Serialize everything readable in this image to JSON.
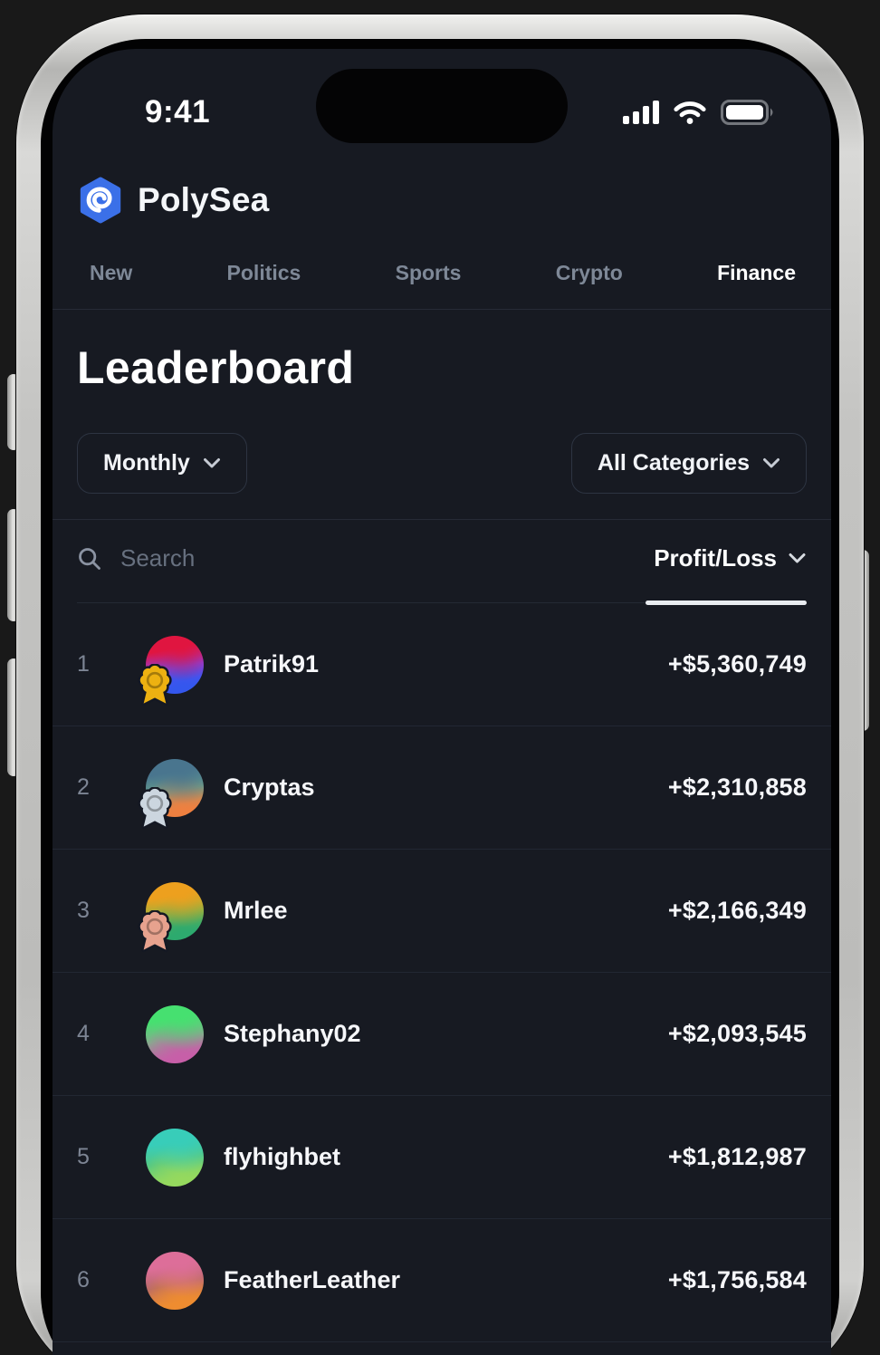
{
  "status_bar": {
    "time": "9:41",
    "icons": [
      "cellular-signal-icon",
      "wifi-icon",
      "battery-icon"
    ]
  },
  "brand": {
    "name": "PolySea",
    "logo_icon": "polysea-swirl-hexagon",
    "logo_color": "#3b70e8"
  },
  "nav": {
    "items": [
      {
        "label": "New",
        "active": false
      },
      {
        "label": "Politics",
        "active": false
      },
      {
        "label": "Sports",
        "active": false
      },
      {
        "label": "Crypto",
        "active": false
      },
      {
        "label": "Finance",
        "active": true
      }
    ]
  },
  "page": {
    "title": "Leaderboard"
  },
  "filters": {
    "period": "Monthly",
    "category": "All Categories"
  },
  "search": {
    "placeholder": "Search"
  },
  "sort": {
    "label": "Profit/Loss",
    "active": true
  },
  "colors": {
    "screen_bg": "#171a22",
    "divider": "#242a35",
    "muted_text": "#7e8897",
    "badge_gold": "#edb111",
    "badge_silver": "#ccd6df",
    "badge_bronze": "#e7a28e"
  },
  "leaderboard": {
    "rows": [
      {
        "rank": "1",
        "name": "Patrik91",
        "value": "+$5,360,749",
        "badge": "gold",
        "badge_color": "#edb111",
        "avatar_colors": [
          "#e01540",
          "#8b3fe8",
          "#3457ee"
        ]
      },
      {
        "rank": "2",
        "name": "Cryptas",
        "value": "+$2,310,858",
        "badge": "silver",
        "badge_color": "#ccd6df",
        "avatar_colors": [
          "#49758e",
          "#68a18c",
          "#ee8040"
        ]
      },
      {
        "rank": "3",
        "name": "Mrlee",
        "value": "+$2,166,349",
        "badge": "bronze",
        "badge_color": "#e7a28e",
        "avatar_colors": [
          "#eda01e",
          "#8fb441",
          "#2daa6e"
        ]
      },
      {
        "rank": "4",
        "name": "Stephany02",
        "value": "+$2,093,545",
        "badge": null,
        "badge_color": null,
        "avatar_colors": [
          "#46e070",
          "#84ad8d",
          "#c75fa8"
        ]
      },
      {
        "rank": "5",
        "name": "flyhighbet",
        "value": "+$1,812,987",
        "badge": null,
        "badge_color": null,
        "avatar_colors": [
          "#38cdb9",
          "#55c883",
          "#95d95e"
        ]
      },
      {
        "rank": "6",
        "name": "FeatherLeather",
        "value": "+$1,756,584",
        "badge": null,
        "badge_color": null,
        "avatar_colors": [
          "#dd6e99",
          "#b86a67",
          "#ee8c30"
        ]
      }
    ]
  }
}
